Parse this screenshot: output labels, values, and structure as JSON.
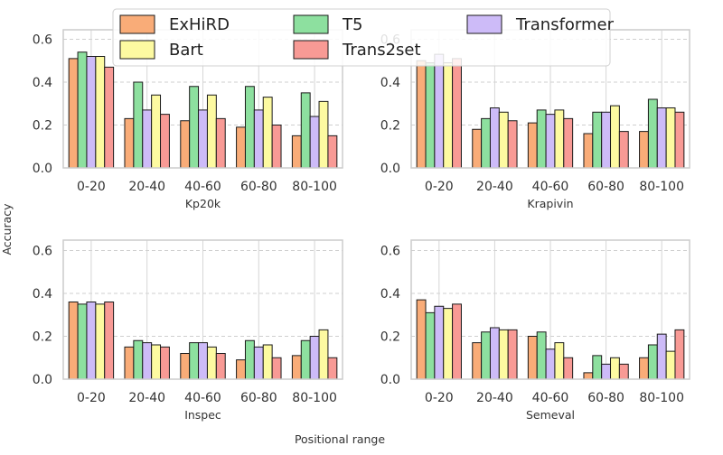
{
  "figure": {
    "ylabel": "Accuracy",
    "xlabel": "Positional range",
    "legend_placement": "top-center",
    "colors": {
      "ExHiRD": "#f9ac78",
      "T5": "#8de09f",
      "Transformer": "#cdbbf8",
      "Bart": "#fdfaa1",
      "Trans2set": "#f89a95"
    }
  },
  "chart_data": [
    {
      "type": "bar",
      "title": "Kp20k",
      "categories": [
        "0-20",
        "20-40",
        "40-60",
        "60-80",
        "80-100"
      ],
      "ylim": [
        0,
        0.65
      ],
      "yticks": [
        "0.0",
        "0.2",
        "0.4",
        "0.6"
      ],
      "grid": true,
      "series": [
        {
          "name": "ExHiRD",
          "values": [
            0.51,
            0.23,
            0.22,
            0.19,
            0.15
          ]
        },
        {
          "name": "T5",
          "values": [
            0.54,
            0.4,
            0.38,
            0.38,
            0.35
          ]
        },
        {
          "name": "Transformer",
          "values": [
            0.52,
            0.27,
            0.27,
            0.27,
            0.24
          ]
        },
        {
          "name": "Bart",
          "values": [
            0.52,
            0.34,
            0.34,
            0.33,
            0.31
          ]
        },
        {
          "name": "Trans2set",
          "values": [
            0.47,
            0.25,
            0.23,
            0.2,
            0.15
          ]
        }
      ]
    },
    {
      "type": "bar",
      "title": "Krapivin",
      "categories": [
        "0-20",
        "20-40",
        "40-60",
        "60-80",
        "80-100"
      ],
      "ylim": [
        0,
        0.65
      ],
      "yticks": [
        "0.0",
        "0.2",
        "0.4",
        "0.6"
      ],
      "grid": true,
      "series": [
        {
          "name": "ExHiRD",
          "values": [
            0.5,
            0.18,
            0.21,
            0.16,
            0.17
          ]
        },
        {
          "name": "T5",
          "values": [
            0.49,
            0.23,
            0.27,
            0.26,
            0.32
          ]
        },
        {
          "name": "Transformer",
          "values": [
            0.53,
            0.28,
            0.25,
            0.26,
            0.28
          ]
        },
        {
          "name": "Bart",
          "values": [
            0.49,
            0.26,
            0.27,
            0.29,
            0.28
          ]
        },
        {
          "name": "Trans2set",
          "values": [
            0.51,
            0.22,
            0.23,
            0.17,
            0.26
          ]
        }
      ]
    },
    {
      "type": "bar",
      "title": "Inspec",
      "categories": [
        "0-20",
        "20-40",
        "40-60",
        "60-80",
        "80-100"
      ],
      "ylim": [
        0,
        0.65
      ],
      "yticks": [
        "0.0",
        "0.2",
        "0.4",
        "0.6"
      ],
      "grid": true,
      "series": [
        {
          "name": "ExHiRD",
          "values": [
            0.36,
            0.15,
            0.12,
            0.09,
            0.11
          ]
        },
        {
          "name": "T5",
          "values": [
            0.35,
            0.18,
            0.17,
            0.18,
            0.18
          ]
        },
        {
          "name": "Transformer",
          "values": [
            0.36,
            0.17,
            0.17,
            0.15,
            0.2
          ]
        },
        {
          "name": "Bart",
          "values": [
            0.35,
            0.16,
            0.15,
            0.16,
            0.23
          ]
        },
        {
          "name": "Trans2set",
          "values": [
            0.36,
            0.15,
            0.12,
            0.1,
            0.1
          ]
        }
      ]
    },
    {
      "type": "bar",
      "title": "Semeval",
      "categories": [
        "0-20",
        "20-40",
        "40-60",
        "60-80",
        "80-100"
      ],
      "ylim": [
        0,
        0.65
      ],
      "yticks": [
        "0.0",
        "0.2",
        "0.4",
        "0.6"
      ],
      "grid": true,
      "series": [
        {
          "name": "ExHiRD",
          "values": [
            0.37,
            0.17,
            0.2,
            0.03,
            0.1
          ]
        },
        {
          "name": "T5",
          "values": [
            0.31,
            0.22,
            0.22,
            0.11,
            0.16
          ]
        },
        {
          "name": "Transformer",
          "values": [
            0.34,
            0.24,
            0.14,
            0.07,
            0.21
          ]
        },
        {
          "name": "Bart",
          "values": [
            0.33,
            0.23,
            0.17,
            0.1,
            0.13
          ]
        },
        {
          "name": "Trans2set",
          "values": [
            0.35,
            0.23,
            0.1,
            0.07,
            0.23
          ]
        }
      ]
    }
  ]
}
